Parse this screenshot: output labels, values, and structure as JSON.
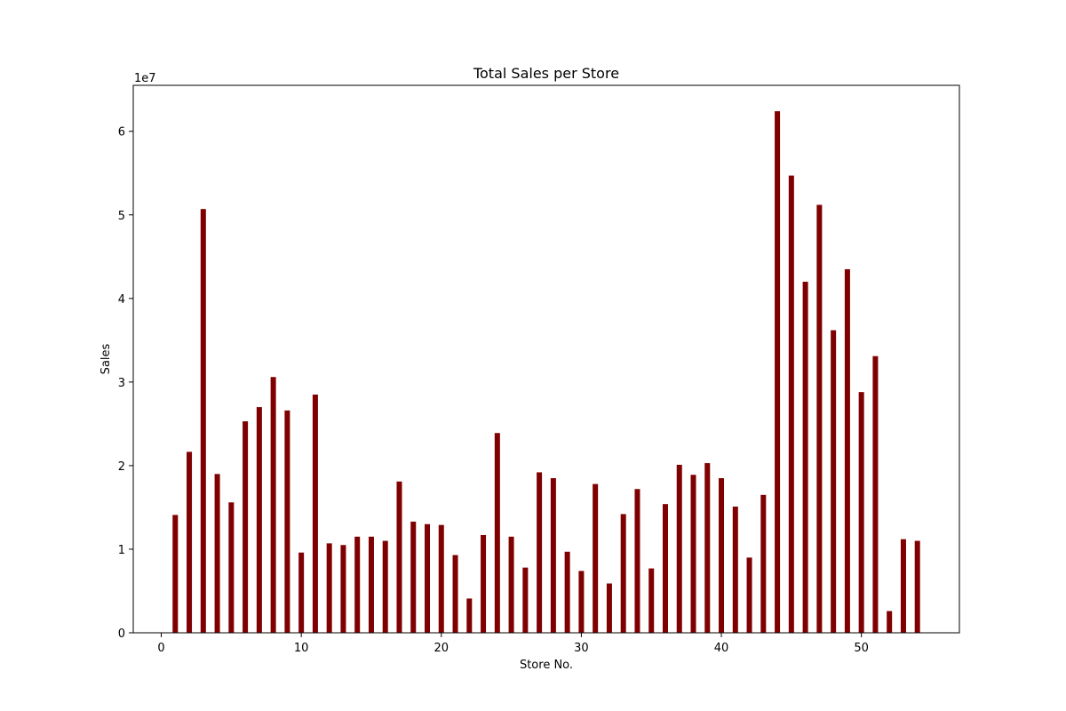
{
  "chart_data": {
    "type": "bar",
    "title": "Total Sales per Store",
    "xlabel": "Store No.",
    "ylabel": "Sales",
    "y_scale_label": "1e7",
    "bar_color": "#7f0000",
    "xlim": [
      -2,
      57
    ],
    "ylim": [
      0,
      65500000
    ],
    "x_ticks": [
      0,
      10,
      20,
      30,
      40,
      50
    ],
    "y_ticks": [
      0,
      1,
      2,
      3,
      4,
      5,
      6
    ],
    "grid": false,
    "x": [
      1,
      2,
      3,
      4,
      5,
      6,
      7,
      8,
      9,
      10,
      11,
      12,
      13,
      14,
      15,
      16,
      17,
      18,
      19,
      20,
      21,
      22,
      23,
      24,
      25,
      26,
      27,
      28,
      29,
      30,
      31,
      32,
      33,
      34,
      35,
      36,
      37,
      38,
      39,
      40,
      41,
      42,
      43,
      44,
      45,
      46,
      47,
      48,
      49,
      50,
      51,
      52,
      53,
      54
    ],
    "values": [
      14100000,
      21650000,
      50700000,
      19000000,
      15600000,
      25300000,
      27000000,
      30600000,
      26600000,
      9600000,
      28500000,
      10700000,
      10500000,
      11500000,
      11500000,
      11000000,
      18100000,
      13300000,
      13000000,
      12900000,
      9300000,
      4100000,
      11700000,
      23900000,
      11500000,
      7800000,
      19200000,
      18500000,
      9700000,
      7400000,
      17800000,
      5900000,
      14200000,
      17200000,
      7700000,
      15400000,
      20100000,
      18900000,
      20300000,
      18500000,
      15100000,
      9000000,
      16500000,
      62400000,
      54700000,
      42000000,
      51200000,
      36200000,
      43500000,
      28800000,
      33100000,
      2600000,
      11200000,
      11000000
    ]
  }
}
